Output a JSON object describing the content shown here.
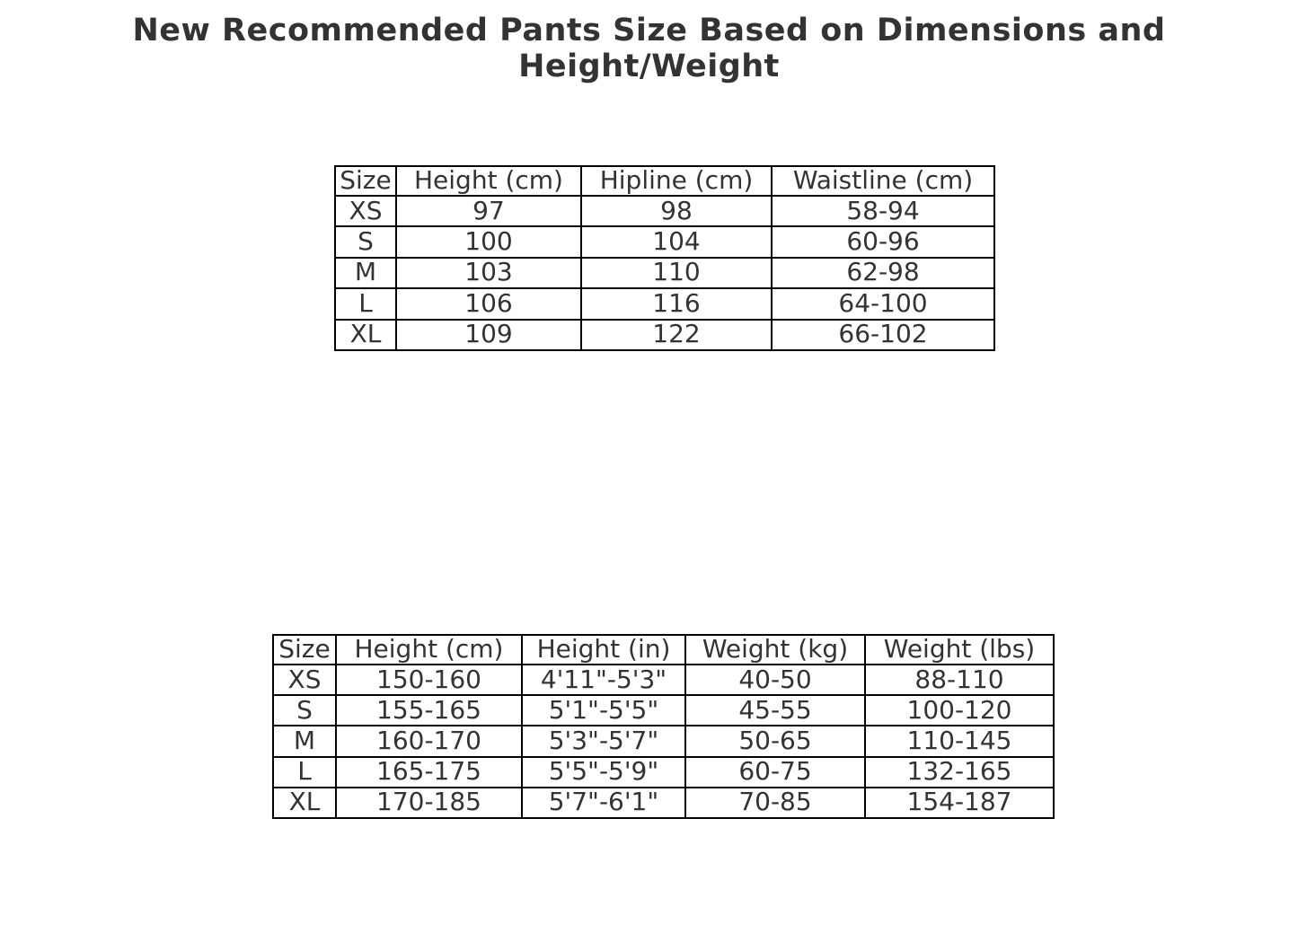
{
  "page": {
    "title": "New Recommended Pants Size Based on Dimensions and Height/Weight"
  },
  "colors": {
    "text": "#333333",
    "border": "#000000",
    "background": "#ffffff"
  },
  "chart_data": [
    {
      "type": "table",
      "name": "pants-size-by-dimensions",
      "columns": [
        "Size",
        "Height (cm)",
        "Hipline (cm)",
        "Waistline (cm)"
      ],
      "rows": [
        [
          "XS",
          "97",
          "98",
          "58-94"
        ],
        [
          "S",
          "100",
          "104",
          "60-96"
        ],
        [
          "M",
          "103",
          "110",
          "62-98"
        ],
        [
          "L",
          "106",
          "116",
          "64-100"
        ],
        [
          "XL",
          "109",
          "122",
          "66-102"
        ]
      ]
    },
    {
      "type": "table",
      "name": "pants-size-by-height-weight",
      "columns": [
        "Size",
        "Height (cm)",
        "Height (in)",
        "Weight (kg)",
        "Weight (lbs)"
      ],
      "rows": [
        [
          "XS",
          "150-160",
          "4'11\"-5'3\"",
          "40-50",
          "88-110"
        ],
        [
          "S",
          "155-165",
          "5'1\"-5'5\"",
          "45-55",
          "100-120"
        ],
        [
          "M",
          "160-170",
          "5'3\"-5'7\"",
          "50-65",
          "110-145"
        ],
        [
          "L",
          "165-175",
          "5'5\"-5'9\"",
          "60-75",
          "132-165"
        ],
        [
          "XL",
          "170-185",
          "5'7\"-6'1\"",
          "70-85",
          "154-187"
        ]
      ]
    }
  ]
}
